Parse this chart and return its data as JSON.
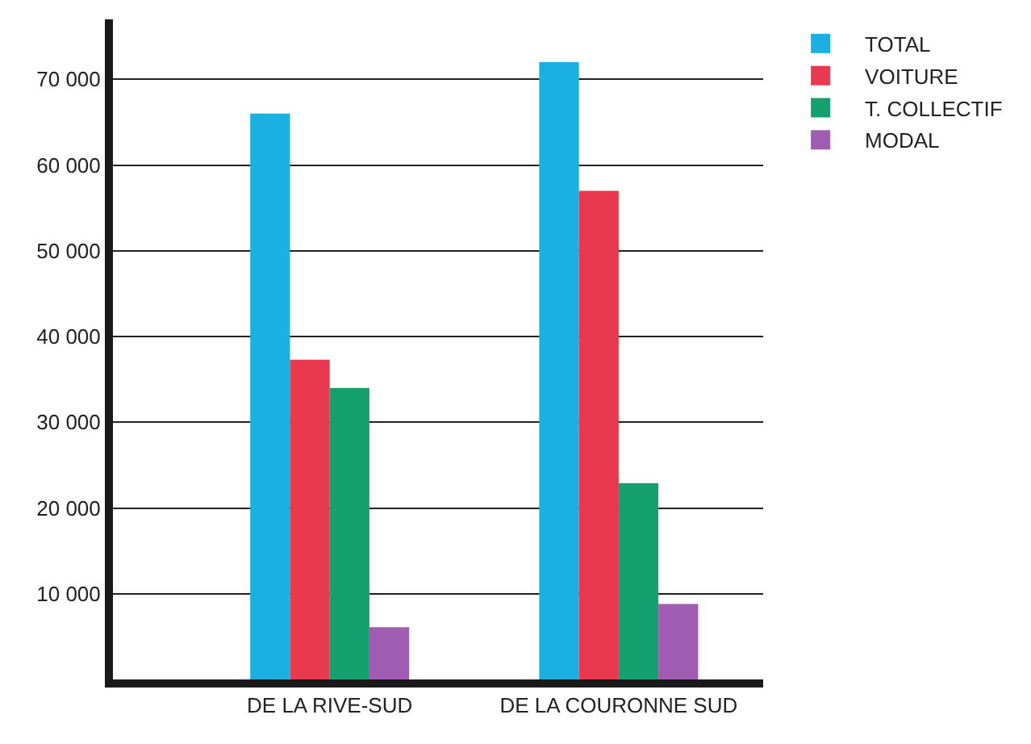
{
  "chart_data": {
    "type": "bar",
    "categories": [
      "DE LA RIVE-SUD",
      "DE LA COURONNE SUD"
    ],
    "series": [
      {
        "name": "TOTAL",
        "color": "#1cb0e0",
        "values": [
          66000,
          72000
        ]
      },
      {
        "name": "VOITURE",
        "color": "#e8394f",
        "values": [
          37300,
          57000
        ]
      },
      {
        "name": "T. COLLECTIF",
        "color": "#17a06f",
        "values": [
          34000,
          22900
        ]
      },
      {
        "name": "MODAL",
        "color": "#a05cb0",
        "values": [
          6100,
          8800
        ]
      }
    ],
    "ylim": [
      0,
      77000
    ],
    "yticks": [
      {
        "value": 10000,
        "label": "10 000"
      },
      {
        "value": 20000,
        "label": "20 000"
      },
      {
        "value": 30000,
        "label": "30 000"
      },
      {
        "value": 40000,
        "label": "40 000"
      },
      {
        "value": 50000,
        "label": "50 000"
      },
      {
        "value": 60000,
        "label": "60 000"
      },
      {
        "value": 70000,
        "label": "70 000"
      }
    ],
    "grid": "y",
    "legend": "top right"
  }
}
